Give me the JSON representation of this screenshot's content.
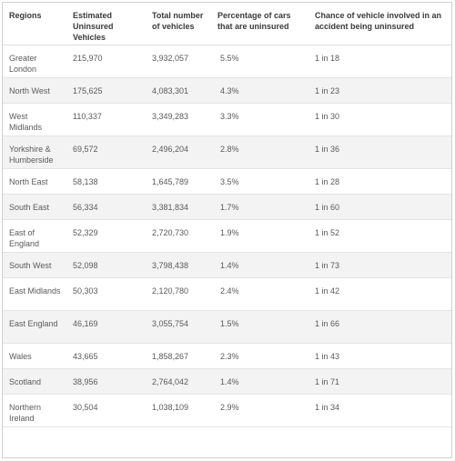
{
  "table": {
    "headers": [
      "Regions",
      "Estimated Uninsured Vehicles",
      "Total number of vehicles",
      "Percentage of cars that are uninsured",
      "Chance of vehicle involved in an accident being uninsured"
    ],
    "rows": [
      [
        "Greater London",
        "215,970",
        "3,932,057",
        "5.5%",
        "1 in 18"
      ],
      [
        "North West",
        "175,625",
        "4,083,301",
        "4.3%",
        "1 in 23"
      ],
      [
        "West Midlands",
        "110,337",
        "3,349,283",
        "3.3%",
        "1 in 30"
      ],
      [
        "Yorkshire & Humberside",
        "69,572",
        "2,496,204",
        "2.8%",
        "1 in 36"
      ],
      [
        "North East",
        "58,138",
        "1,645,789",
        "3.5%",
        "1 in 28"
      ],
      [
        "South East",
        "56,334",
        "3,381,834",
        "1.7%",
        "1 in 60"
      ],
      [
        "East of England",
        "52,329",
        "2,720,730",
        "1.9%",
        "1 in 52"
      ],
      [
        "South West",
        "52,098",
        "3,798,438",
        "1.4%",
        "1 in 73"
      ],
      [
        "East Midlands",
        "50,303",
        "2,120,780",
        "2.4%",
        "1 in 42"
      ],
      [
        "East England",
        "46,169",
        "3,055,754",
        "1.5%",
        "1 in 66"
      ],
      [
        "Wales",
        "43,665",
        "1,858,267",
        "2.3%",
        "1 in 43"
      ],
      [
        "Scotland",
        "38,956",
        "2,764,042",
        "1.4%",
        "1 in 71"
      ],
      [
        "Northern Ireland",
        "30,504",
        "1,038,109",
        "2.9%",
        "1 in 34"
      ]
    ]
  },
  "colors": {
    "stripe": "#f3f3f3",
    "border": "#dcdcdc",
    "header_text": "#3a3a3a",
    "body_text": "#5a5a5a"
  }
}
